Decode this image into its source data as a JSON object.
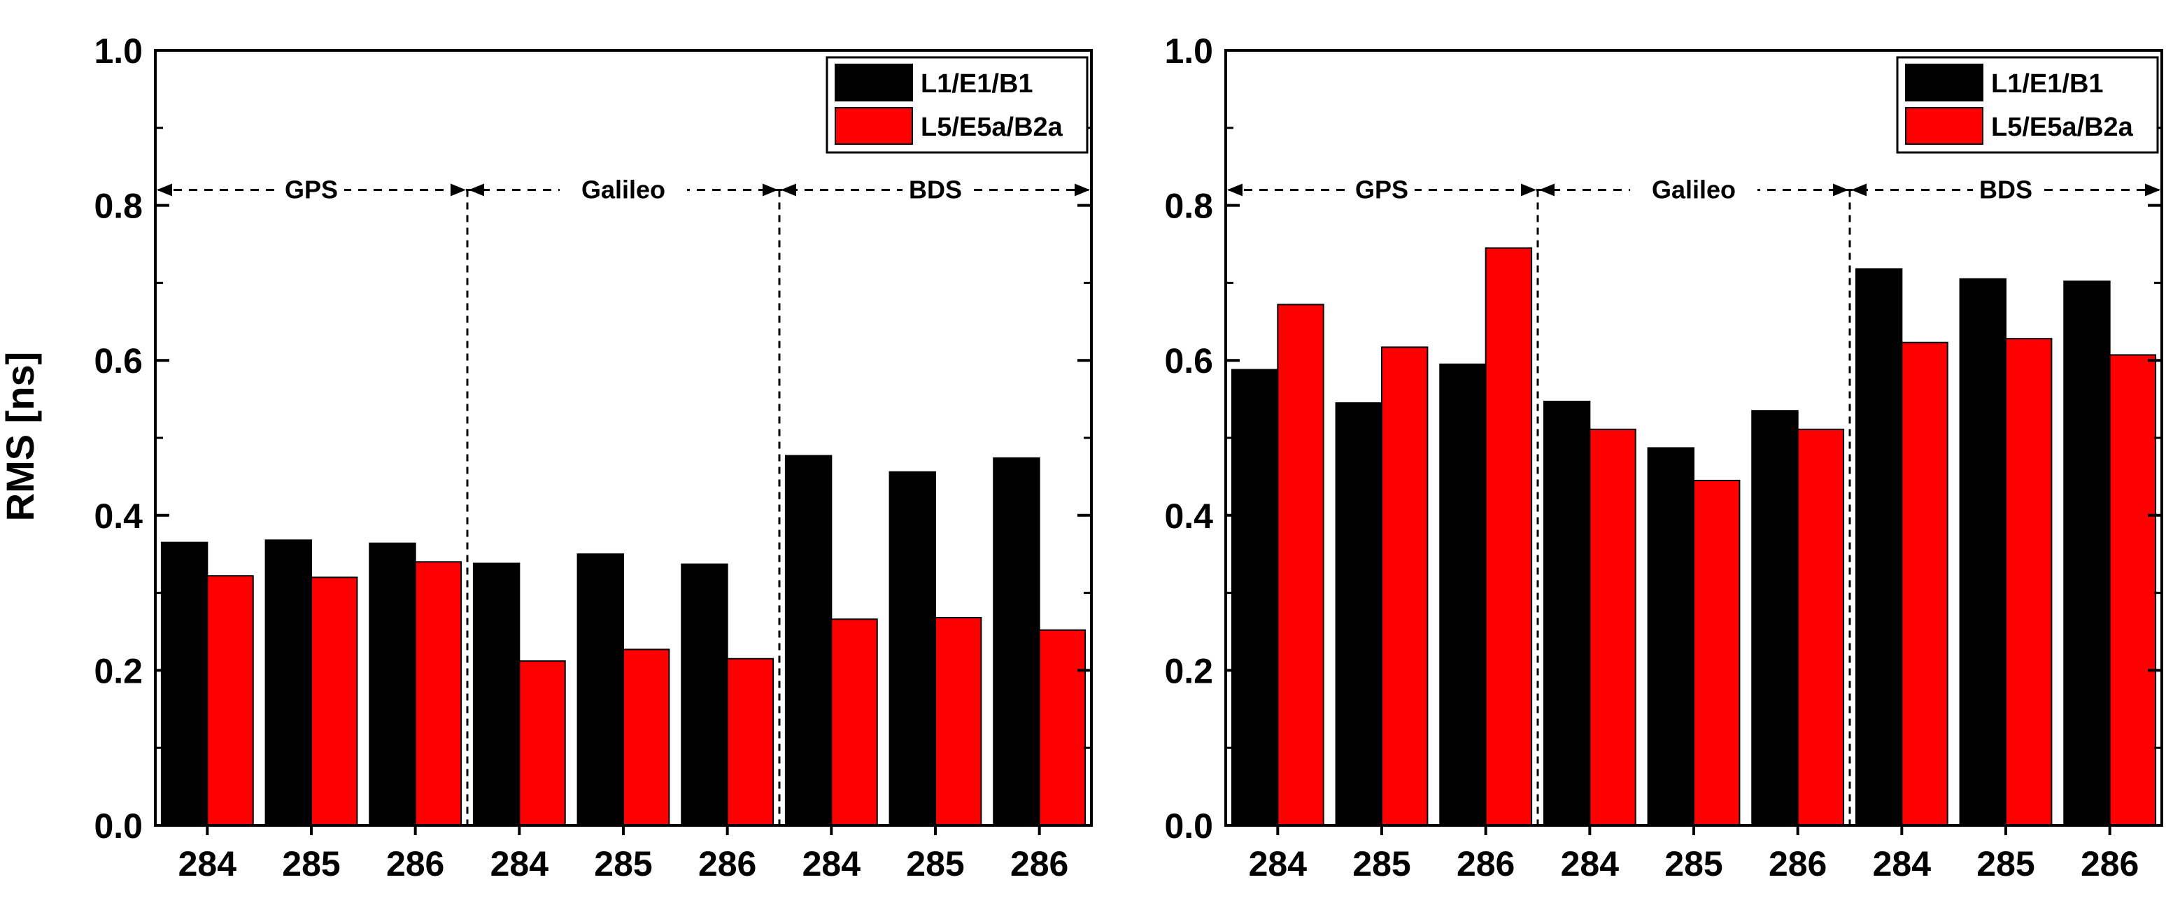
{
  "colors": {
    "series1": "#000000",
    "series2": "#ff0000",
    "axis": "#000000"
  },
  "y_axis_label": "RMS [ns]",
  "chart_data": [
    {
      "type": "bar",
      "title": "",
      "xlabel": "",
      "ylabel": "RMS [ns]",
      "ylim": [
        0,
        1.0
      ],
      "yticks": [
        "0.0",
        "0.2",
        "0.4",
        "0.6",
        "0.8",
        "1.0"
      ],
      "categories": [
        "284",
        "285",
        "286",
        "284",
        "285",
        "286",
        "284",
        "285",
        "286"
      ],
      "groups": [
        {
          "name": "GPS",
          "span": [
            0,
            2
          ]
        },
        {
          "name": "Galileo",
          "span": [
            3,
            5
          ]
        },
        {
          "name": "BDS",
          "span": [
            6,
            8
          ]
        }
      ],
      "group_line_value": 0.82,
      "legend_position": "top-right",
      "series": [
        {
          "name": "L1/E1/B1",
          "color": "#000000",
          "values": [
            0.365,
            0.368,
            0.364,
            0.338,
            0.35,
            0.337,
            0.477,
            0.456,
            0.474
          ]
        },
        {
          "name": "L5/E5a/B2a",
          "color": "#ff0000",
          "values": [
            0.322,
            0.32,
            0.34,
            0.212,
            0.227,
            0.215,
            0.266,
            0.268,
            0.252
          ]
        }
      ]
    },
    {
      "type": "bar",
      "title": "",
      "xlabel": "",
      "ylabel": "",
      "ylim": [
        0,
        1.0
      ],
      "yticks": [
        "0.0",
        "0.2",
        "0.4",
        "0.6",
        "0.8",
        "1.0"
      ],
      "categories": [
        "284",
        "285",
        "286",
        "284",
        "285",
        "286",
        "284",
        "285",
        "286"
      ],
      "groups": [
        {
          "name": "GPS",
          "span": [
            0,
            2
          ]
        },
        {
          "name": "Galileo",
          "span": [
            3,
            5
          ]
        },
        {
          "name": "BDS",
          "span": [
            6,
            8
          ]
        }
      ],
      "group_line_value": 0.82,
      "legend_position": "top-right",
      "series": [
        {
          "name": "L1/E1/B1",
          "color": "#000000",
          "values": [
            0.588,
            0.545,
            0.595,
            0.547,
            0.487,
            0.535,
            0.718,
            0.705,
            0.702
          ]
        },
        {
          "name": "L5/E5a/B2a",
          "color": "#ff0000",
          "values": [
            0.672,
            0.617,
            0.745,
            0.511,
            0.445,
            0.511,
            0.623,
            0.628,
            0.607
          ]
        }
      ]
    }
  ]
}
